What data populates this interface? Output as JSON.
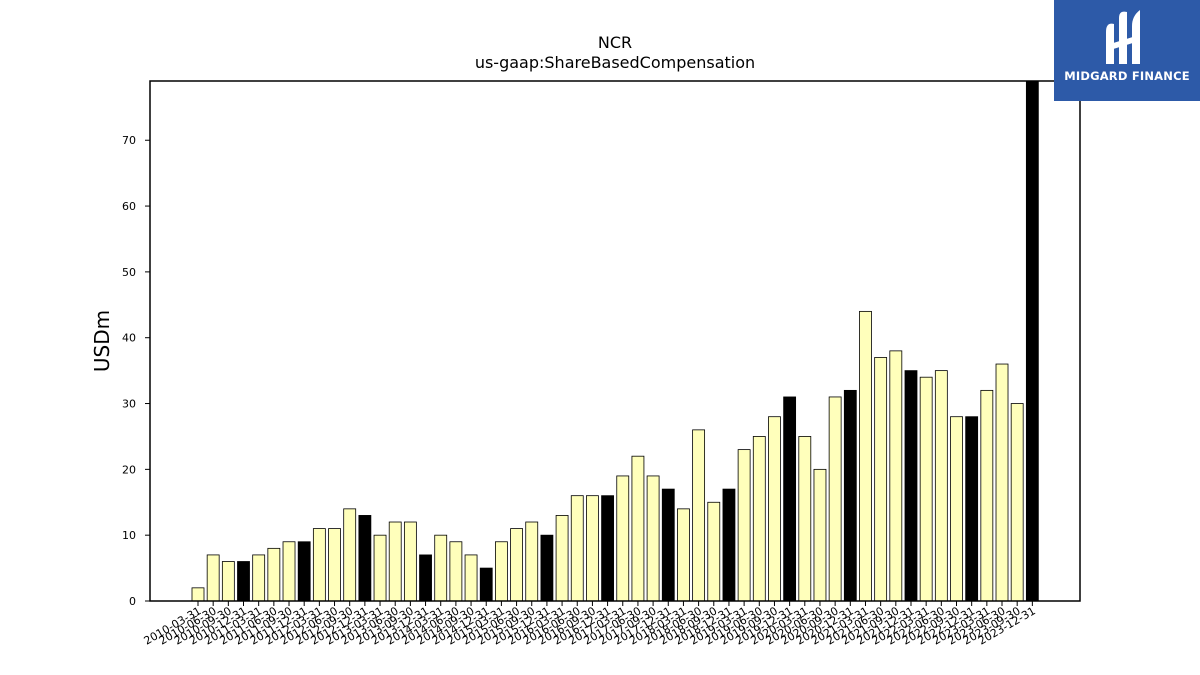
{
  "brand": {
    "name": "MIDGARD FINANCE",
    "bg_color": "#2d5aa8",
    "icon": "midgard-monogram-icon"
  },
  "chart_data": {
    "type": "bar",
    "title": "NCR",
    "subtitle": "us-gaap:ShareBasedCompensation",
    "xlabel": "",
    "ylabel": "USDm",
    "ylim": [
      0,
      79
    ],
    "yticks": [
      0,
      10,
      20,
      30,
      40,
      50,
      60,
      70
    ],
    "grid": false,
    "bar_color": "#ffffbb",
    "highlight_color": "#000000",
    "categories": [
      "2010-03-31",
      "2010-06-30",
      "2010-09-30",
      "2010-12-31",
      "2011-03-31",
      "2011-06-30",
      "2011-09-30",
      "2011-12-31",
      "2012-03-31",
      "2012-06-30",
      "2012-09-30",
      "2012-12-31",
      "2013-03-31",
      "2013-06-30",
      "2013-09-30",
      "2013-12-31",
      "2014-03-31",
      "2014-06-30",
      "2014-09-30",
      "2014-12-31",
      "2015-03-31",
      "2015-06-30",
      "2015-09-30",
      "2015-12-31",
      "2016-03-31",
      "2016-06-30",
      "2016-09-30",
      "2016-12-31",
      "2017-03-31",
      "2017-06-30",
      "2017-09-30",
      "2017-12-31",
      "2018-03-31",
      "2018-06-30",
      "2018-09-30",
      "2018-12-31",
      "2019-03-31",
      "2019-06-30",
      "2019-09-30",
      "2019-12-31",
      "2020-03-31",
      "2020-06-30",
      "2020-09-30",
      "2020-12-31",
      "2021-03-31",
      "2021-06-30",
      "2021-09-30",
      "2021-12-31",
      "2022-03-31",
      "2022-06-30",
      "2022-09-30",
      "2022-12-31",
      "2023-03-31",
      "2023-06-30",
      "2023-09-30",
      "2023-12-31"
    ],
    "values": [
      2,
      7,
      6,
      6,
      7,
      8,
      9,
      9,
      11,
      11,
      14,
      13,
      10,
      12,
      12,
      7,
      10,
      9,
      7,
      5,
      9,
      11,
      12,
      10,
      13,
      16,
      16,
      16,
      19,
      22,
      19,
      17,
      14,
      26,
      15,
      17,
      23,
      25,
      28,
      31,
      25,
      20,
      31,
      32,
      44,
      37,
      38,
      35,
      34,
      35,
      28,
      28,
      32,
      36,
      30,
      79
    ],
    "highlight": [
      0,
      0,
      0,
      1,
      0,
      0,
      0,
      1,
      0,
      0,
      0,
      1,
      0,
      0,
      0,
      1,
      0,
      0,
      0,
      1,
      0,
      0,
      0,
      1,
      0,
      0,
      0,
      1,
      0,
      0,
      0,
      1,
      0,
      0,
      0,
      1,
      0,
      0,
      0,
      1,
      0,
      0,
      0,
      1,
      0,
      0,
      0,
      1,
      0,
      0,
      0,
      1,
      0,
      0,
      0,
      1
    ]
  }
}
